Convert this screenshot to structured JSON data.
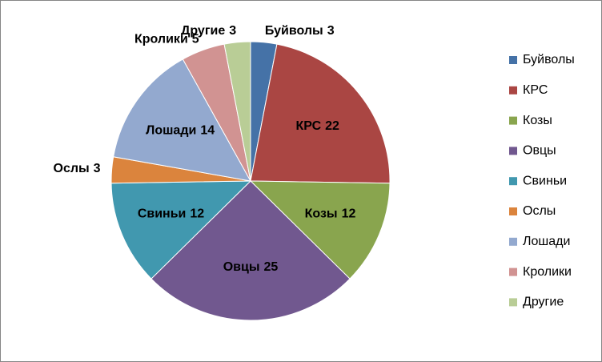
{
  "chart_data": {
    "type": "pie",
    "categories": [
      "Буйволы",
      "КРС",
      "Козы",
      "Овцы",
      "Свиньи",
      "Ослы",
      "Лошади",
      "Кролики",
      "Другие"
    ],
    "values": [
      3,
      22,
      12,
      25,
      12,
      3,
      14,
      5,
      3
    ],
    "colors": [
      "#4572a7",
      "#aa4643",
      "#89a54e",
      "#71588f",
      "#4198af",
      "#db843d",
      "#93a9cf",
      "#d19392",
      "#b9cd96"
    ],
    "legend": "right"
  }
}
